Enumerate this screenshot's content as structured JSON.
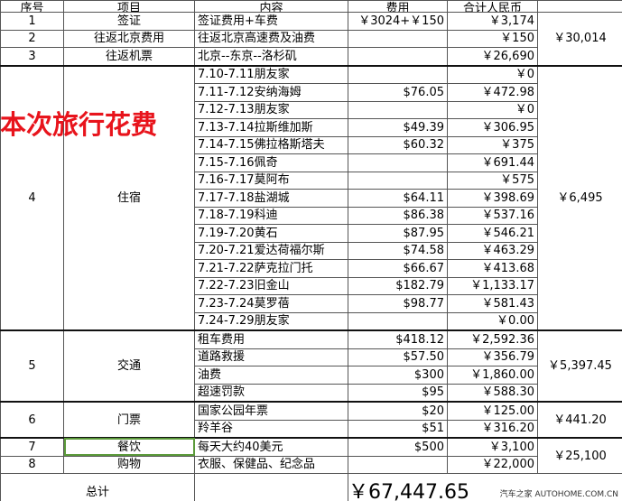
{
  "header": {
    "no": "序号",
    "item": "项目",
    "content": "内容",
    "cost": "费用",
    "rmb": "合计人民币"
  },
  "sections": [
    {
      "total": "￥30,014",
      "items": [
        {
          "no": "1",
          "name": "签证",
          "rows": [
            {
              "content": "签证费用+车费",
              "cost": "￥3024+￥150",
              "rmb": "￥3,174"
            }
          ]
        },
        {
          "no": "2",
          "name": "往返北京费用",
          "rows": [
            {
              "content": "往返北京高速费及油费",
              "cost": null,
              "rmb": "￥150"
            }
          ]
        },
        {
          "no": "3",
          "name": "往返机票",
          "rows": [
            {
              "content": "北京--东京--洛杉矶",
              "cost": null,
              "rmb": "￥26,690"
            }
          ]
        }
      ]
    },
    {
      "total": "￥6,495",
      "items": [
        {
          "no": "4",
          "name": "住宿",
          "rows": [
            {
              "content": "7.10-7.11朋友家",
              "cost": null,
              "rmb": "￥0"
            },
            {
              "content": "7.11-7.12安纳海姆",
              "cost": "$76.05",
              "rmb": "￥472.98"
            },
            {
              "content": "7.12-7.13朋友家",
              "cost": null,
              "rmb": "￥0"
            },
            {
              "content": "7.13-7.14拉斯维加斯",
              "cost": "$49.39",
              "rmb": "￥306.95"
            },
            {
              "content": "7.14-7.15佛拉格斯塔夫",
              "cost": "$60.32",
              "rmb": "￥375"
            },
            {
              "content": "7.15-7.16佩奇",
              "cost": null,
              "rmb": "￥691.44"
            },
            {
              "content": "7.16-7.17莫阿布",
              "cost": null,
              "rmb": "￥575"
            },
            {
              "content": "7.17-7.18盐湖城",
              "cost": "$64.11",
              "rmb": "￥398.69"
            },
            {
              "content": "7.18-7.19科迪",
              "cost": "$86.38",
              "rmb": "￥537.16"
            },
            {
              "content": "7.19-7.20黄石",
              "cost": "$87.95",
              "rmb": "￥546.21"
            },
            {
              "content": "7.20-7.21爱达荷福尔斯",
              "cost": "$74.58",
              "rmb": "￥463.29"
            },
            {
              "content": "7.21-7.22萨克拉门托",
              "cost": "$66.67",
              "rmb": "￥413.68"
            },
            {
              "content": "7.22-7.23旧金山",
              "cost": "$182.79",
              "rmb": "￥1,133.17"
            },
            {
              "content": "7.23-7.24莫罗蓓",
              "cost": "$98.77",
              "rmb": "￥581.43"
            },
            {
              "content": "7.24-7.29朋友家",
              "cost": null,
              "rmb": "￥0.00"
            }
          ]
        }
      ]
    },
    {
      "total": "￥5,397.45",
      "items": [
        {
          "no": "5",
          "name": "交通",
          "rows": [
            {
              "content": "租车费用",
              "cost": "$418.12",
              "rmb": "￥2,592.36"
            },
            {
              "content": "道路救援",
              "cost": "$57.50",
              "rmb": "￥356.79"
            },
            {
              "content": "油费",
              "cost": "$300",
              "rmb": "￥1,860.00"
            },
            {
              "content": "超速罚款",
              "cost": "$95",
              "rmb": "￥588.30"
            }
          ]
        }
      ]
    },
    {
      "total": "￥441.20",
      "items": [
        {
          "no": "6",
          "name": "门票",
          "rows": [
            {
              "content": "国家公园年票",
              "cost": "$20",
              "rmb": "￥125.00"
            },
            {
              "content": "羚羊谷",
              "cost": "$51",
              "rmb": "￥316.20"
            }
          ]
        }
      ]
    },
    {
      "total": "￥25,100",
      "items": [
        {
          "no": "7",
          "name": "餐饮",
          "rows": [
            {
              "content": "每天大约40美元",
              "cost": "$500",
              "rmb": "￥3,100"
            }
          ]
        },
        {
          "no": "8",
          "name": "购物",
          "rows": [
            {
              "content": "衣服、保健品、纪念品",
              "cost": null,
              "rmb": "￥22,000"
            }
          ]
        }
      ]
    }
  ],
  "grand_total": {
    "label": "总计",
    "value": "￥67,447.65"
  },
  "overlay_title": "本次旅行花费",
  "watermark": "汽车之家 AUTOHOME.COM.CN"
}
